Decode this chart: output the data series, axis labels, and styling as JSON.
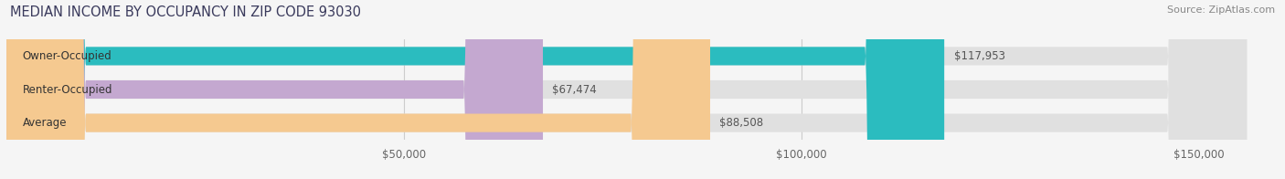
{
  "title": "MEDIAN INCOME BY OCCUPANCY IN ZIP CODE 93030",
  "source_text": "Source: ZipAtlas.com",
  "categories": [
    "Owner-Occupied",
    "Renter-Occupied",
    "Average"
  ],
  "values": [
    117953,
    67474,
    88508
  ],
  "bar_colors": [
    "#2bbcbf",
    "#c4a8d0",
    "#f5c990"
  ],
  "value_labels": [
    "$117,953",
    "$67,474",
    "$88,508"
  ],
  "xlim": [
    0,
    160000
  ],
  "xticks": [
    50000,
    100000,
    150000
  ],
  "xtick_labels": [
    "$50,000",
    "$100,000",
    "$150,000"
  ],
  "background_color": "#f5f5f5",
  "bar_background_color": "#e0e0e0",
  "title_color": "#3a3a5c",
  "title_fontsize": 10.5,
  "source_fontsize": 8,
  "tick_fontsize": 8.5,
  "bar_height": 0.55,
  "bar_label_fontsize": 8.5,
  "category_fontsize": 8.5
}
